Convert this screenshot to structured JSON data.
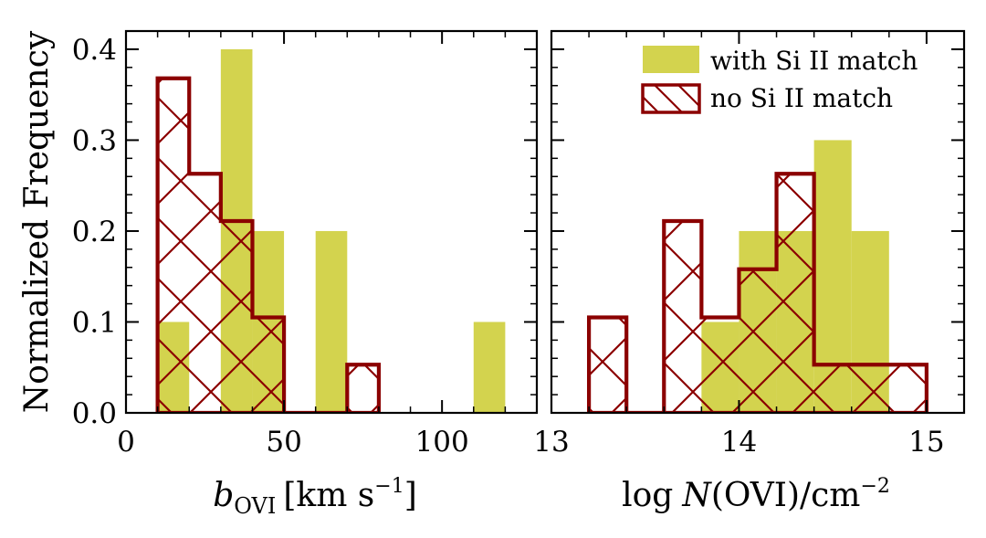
{
  "colors": {
    "with_match": "#d3d34e",
    "no_match": "#8b0000",
    "axes": "#000000",
    "background": "#ffffff"
  },
  "chart_data": [
    {
      "type": "bar",
      "subtype": "histogram",
      "xlabel_parts": {
        "var": "b",
        "sub": "OVI",
        "unit_pre": "[km s",
        "unit_sup": "−1",
        "unit_post": "]"
      },
      "ylabel": "Normalized Frequency",
      "xlim": [
        0,
        130
      ],
      "ylim": [
        0,
        0.42
      ],
      "xticks": [
        0,
        50,
        100
      ],
      "xtick_labels": [
        "0",
        "50",
        "100"
      ],
      "yticks": [
        0.0,
        0.1,
        0.2,
        0.3,
        0.4
      ],
      "ytick_labels": [
        "0.0",
        "0.1",
        "0.2",
        "0.3",
        "0.4"
      ],
      "x_minor_step": 10,
      "y_minor_step": 0.02,
      "grid": false,
      "series": [
        {
          "name": "with Si II match",
          "style": "filled",
          "bins": [
            [
              10,
              20
            ],
            [
              20,
              30
            ],
            [
              30,
              40
            ],
            [
              40,
              50
            ],
            [
              50,
              60
            ],
            [
              60,
              70
            ],
            [
              70,
              80
            ],
            [
              80,
              90
            ],
            [
              90,
              100
            ],
            [
              100,
              110
            ],
            [
              110,
              120
            ]
          ],
          "values": [
            0.1,
            0.0,
            0.4,
            0.2,
            0.0,
            0.2,
            0.0,
            0.0,
            0.0,
            0.0,
            0.1
          ]
        },
        {
          "name": "no Si II match",
          "style": "hatched-step",
          "bins": [
            [
              10,
              20
            ],
            [
              20,
              30
            ],
            [
              30,
              40
            ],
            [
              40,
              50
            ],
            [
              50,
              60
            ],
            [
              60,
              70
            ],
            [
              70,
              80
            ]
          ],
          "values": [
            0.368,
            0.263,
            0.211,
            0.105,
            0.0,
            0.0,
            0.053
          ]
        }
      ]
    },
    {
      "type": "bar",
      "subtype": "histogram",
      "xlabel_parts": {
        "pre": "log",
        "var": "N",
        "mid": "(OVI)/cm",
        "sup": "−2"
      },
      "ylabel": "",
      "xlim": [
        13,
        15.2
      ],
      "ylim": [
        0,
        0.42
      ],
      "xticks": [
        13,
        14,
        15
      ],
      "xtick_labels": [
        "13",
        "14",
        "15"
      ],
      "x_minor_step": 0.2,
      "y_minor_step": 0.02,
      "legend_position": "top-right",
      "grid": false,
      "series": [
        {
          "name": "with Si II match",
          "style": "filled",
          "bins": [
            [
              13.8,
              14.0
            ],
            [
              14.0,
              14.2
            ],
            [
              14.2,
              14.4
            ],
            [
              14.4,
              14.6
            ],
            [
              14.6,
              14.8
            ]
          ],
          "values": [
            0.1,
            0.2,
            0.2,
            0.3,
            0.2
          ]
        },
        {
          "name": "no Si II match",
          "style": "hatched-step",
          "bins": [
            [
              13.2,
              13.4
            ],
            [
              13.4,
              13.6
            ],
            [
              13.6,
              13.8
            ],
            [
              13.8,
              14.0
            ],
            [
              14.0,
              14.2
            ],
            [
              14.2,
              14.4
            ],
            [
              14.4,
              14.6
            ],
            [
              14.6,
              14.8
            ],
            [
              14.8,
              15.0
            ]
          ],
          "values": [
            0.105,
            0.0,
            0.211,
            0.105,
            0.158,
            0.263,
            0.053,
            0.053,
            0.053
          ]
        }
      ]
    }
  ],
  "legend": {
    "items": [
      {
        "label": "with Si II match",
        "style": "filled"
      },
      {
        "label": "no Si II match",
        "style": "hatched"
      }
    ]
  }
}
